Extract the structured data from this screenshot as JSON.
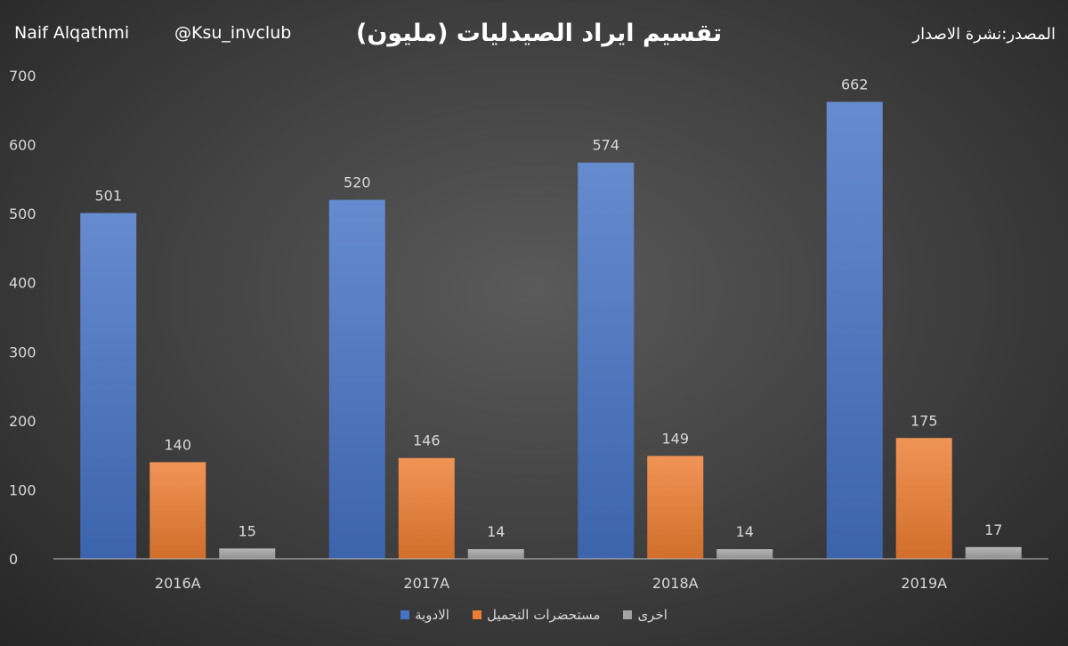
{
  "header": {
    "author": "Naif Alqathmi",
    "handle": "@Ksu_invclub",
    "title": "تقسيم ايراد الصيدليات (مليون)",
    "source": "المصدر:نشرة الاصدار"
  },
  "chart_data": {
    "type": "bar",
    "title": "تقسيم ايراد الصيدليات (مليون)",
    "categories": [
      "2016A",
      "2017A",
      "2018A",
      "2019A"
    ],
    "series": [
      {
        "name": "الادوية",
        "values": [
          501,
          520,
          574,
          662
        ],
        "color": "#4472c4"
      },
      {
        "name": "مستحضرات التجميل",
        "values": [
          140,
          146,
          149,
          175
        ],
        "color": "#ed7d31"
      },
      {
        "name": "اخرى",
        "values": [
          15,
          14,
          14,
          17
        ],
        "color": "#a5a5a5"
      }
    ],
    "yticks": [
      0,
      100,
      200,
      300,
      400,
      500,
      600,
      700
    ],
    "ylim": [
      0,
      700
    ],
    "grid": false,
    "legend_position": "bottom"
  }
}
